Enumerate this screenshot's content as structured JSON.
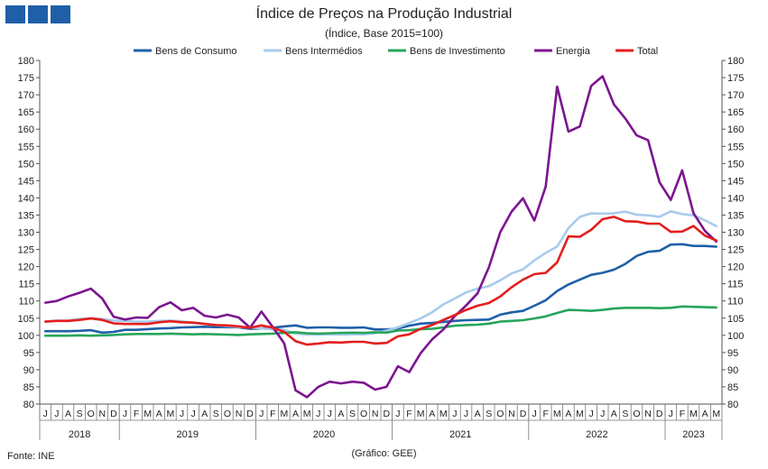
{
  "logo": {
    "colors": [
      "#1f5fa8",
      "#1f5fa8",
      "#1f5fa8"
    ]
  },
  "title": "Índice de Preços na Produção Industrial",
  "subtitle": "(Índice, Base 2015=100)",
  "footer": {
    "source": "Fonte: INE",
    "credit": "(Gráfico: GEE)"
  },
  "chart_data": {
    "type": "line",
    "legend_position": "top",
    "grid": false,
    "ylim": [
      80,
      180
    ],
    "yticks": [
      80,
      85,
      90,
      95,
      100,
      105,
      110,
      115,
      120,
      125,
      130,
      135,
      140,
      145,
      150,
      155,
      160,
      165,
      170,
      175,
      180
    ],
    "x": [
      "J",
      "J",
      "A",
      "S",
      "O",
      "N",
      "D",
      "J",
      "F",
      "M",
      "A",
      "M",
      "J",
      "J",
      "A",
      "S",
      "O",
      "N",
      "D",
      "J",
      "F",
      "M",
      "A",
      "M",
      "J",
      "J",
      "A",
      "S",
      "O",
      "N",
      "D",
      "J",
      "F",
      "M",
      "A",
      "M",
      "J",
      "J",
      "A",
      "S",
      "O",
      "N",
      "D",
      "J",
      "F",
      "M",
      "A",
      "M",
      "J",
      "J",
      "A",
      "S",
      "O",
      "N",
      "D",
      "J",
      "F",
      "M",
      "A",
      "M"
    ],
    "years": [
      {
        "label": "2018",
        "start": 0,
        "count": 7
      },
      {
        "label": "2019",
        "start": 7,
        "count": 12
      },
      {
        "label": "2020",
        "start": 19,
        "count": 12
      },
      {
        "label": "2021",
        "start": 31,
        "count": 12
      },
      {
        "label": "2022",
        "start": 43,
        "count": 12
      },
      {
        "label": "2023",
        "start": 55,
        "count": 5
      }
    ],
    "series": [
      {
        "name": "Bens de Consumo",
        "color": "#1f5fa8",
        "values": [
          101.2,
          101.2,
          101.2,
          101.3,
          101.5,
          100.8,
          101.0,
          101.6,
          101.6,
          101.8,
          102.0,
          102.1,
          102.3,
          102.4,
          102.5,
          102.4,
          102.4,
          102.3,
          101.9,
          102.0,
          102.2,
          102.6,
          102.9,
          102.2,
          102.3,
          102.3,
          102.2,
          102.2,
          102.3,
          101.7,
          101.7,
          102.0,
          102.8,
          103.4,
          103.6,
          103.9,
          104.2,
          104.4,
          104.5,
          104.6,
          106.0,
          106.7,
          107.1,
          108.6,
          110.2,
          112.9,
          114.8,
          116.2,
          117.6,
          118.2,
          119.1,
          120.8,
          123.1,
          124.3,
          124.6,
          126.4,
          126.5,
          126.0,
          126.0,
          125.8
        ]
      },
      {
        "name": "Bens Intermédios",
        "color": "#a8cbeb",
        "values": [
          104.0,
          104.3,
          104.3,
          104.8,
          105.0,
          104.8,
          104.3,
          104.2,
          104.0,
          104.0,
          104.2,
          104.3,
          104.1,
          103.6,
          103.4,
          103.0,
          102.7,
          102.4,
          102.3,
          102.0,
          101.7,
          101.6,
          100.5,
          100.2,
          100.2,
          100.3,
          100.2,
          100.3,
          100.3,
          100.6,
          101.4,
          102.3,
          103.6,
          104.9,
          106.7,
          109.0,
          110.7,
          112.5,
          113.6,
          114.3,
          116.0,
          118.0,
          119.2,
          121.8,
          124.0,
          125.8,
          131.2,
          134.5,
          135.5,
          135.4,
          135.5,
          136.0,
          135.1,
          134.9,
          134.5,
          136.1,
          135.3,
          134.9,
          133.5,
          131.8
        ]
      },
      {
        "name": "Bens de Investimento",
        "color": "#27a55a",
        "values": [
          99.9,
          99.9,
          99.9,
          100.0,
          99.9,
          100.0,
          100.1,
          100.3,
          100.4,
          100.4,
          100.4,
          100.5,
          100.4,
          100.3,
          100.4,
          100.3,
          100.2,
          100.1,
          100.3,
          100.4,
          100.5,
          100.7,
          100.9,
          100.6,
          100.5,
          100.6,
          100.7,
          100.8,
          100.7,
          100.9,
          100.8,
          101.4,
          101.5,
          101.8,
          101.9,
          102.3,
          102.8,
          103.0,
          103.1,
          103.4,
          104.0,
          104.2,
          104.4,
          104.9,
          105.5,
          106.5,
          107.4,
          107.3,
          107.1,
          107.4,
          107.8,
          108.0,
          108.0,
          108.0,
          107.9,
          108.0,
          108.4,
          108.3,
          108.2,
          108.1
        ]
      },
      {
        "name": "Energia",
        "color": "#7c1590",
        "values": [
          109.5,
          110.0,
          111.3,
          112.4,
          113.6,
          110.7,
          105.4,
          104.6,
          105.2,
          105.1,
          108.2,
          109.6,
          107.3,
          108.0,
          105.7,
          105.2,
          106.0,
          105.2,
          102.2,
          106.9,
          102.4,
          97.7,
          84.0,
          82.0,
          85.0,
          86.5,
          86.0,
          86.5,
          86.2,
          84.2,
          85.0,
          91.0,
          89.3,
          94.8,
          98.8,
          101.7,
          105.6,
          108.7,
          112.2,
          119.8,
          130.0,
          136.0,
          139.9,
          133.4,
          143.3,
          172.4,
          159.3,
          160.8,
          172.6,
          175.4,
          167.2,
          163.1,
          158.2,
          156.8,
          144.6,
          139.4,
          148.0,
          135.5,
          130.4,
          127.3
        ]
      },
      {
        "name": "Total",
        "color": "#e41e1e",
        "values": [
          104.0,
          104.2,
          104.2,
          104.5,
          104.9,
          104.5,
          103.5,
          103.3,
          103.3,
          103.3,
          103.8,
          104.1,
          103.8,
          103.7,
          103.3,
          103.0,
          102.9,
          102.6,
          102.2,
          102.9,
          102.2,
          101.0,
          98.3,
          97.3,
          97.6,
          98.0,
          97.9,
          98.1,
          98.1,
          97.6,
          97.8,
          99.7,
          100.3,
          101.9,
          103.0,
          104.5,
          105.9,
          107.4,
          108.6,
          109.4,
          111.3,
          114.0,
          116.2,
          117.8,
          118.2,
          121.2,
          128.8,
          128.7,
          130.7,
          133.8,
          134.5,
          133.2,
          133.1,
          132.5,
          132.5,
          130.1,
          130.2,
          131.8,
          129.0,
          127.6
        ]
      }
    ]
  }
}
